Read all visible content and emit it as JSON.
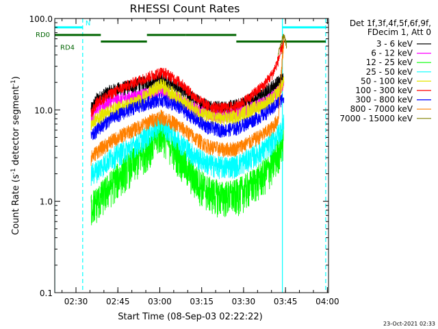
{
  "chart_data": {
    "type": "line",
    "title": "RHESSI Count Rates",
    "xlabel": "Start Time (08-Sep-03 02:22:22)",
    "ylabel_parts": [
      "Count Rate (s",
      "-1",
      " detector segment",
      "-1",
      ")"
    ],
    "x_unit": "minutes after 02:22:22 UT",
    "xlim": [
      0,
      98
    ],
    "ylim": [
      0.1,
      100
    ],
    "yscale": "log",
    "grid": false,
    "legend_position": "right",
    "x_ticks": [
      {
        "label": "02:30",
        "minute": 7.6
      },
      {
        "label": "02:45",
        "minute": 22.6
      },
      {
        "label": "03:00",
        "minute": 37.6
      },
      {
        "label": "03:15",
        "minute": 52.6
      },
      {
        "label": "03:30",
        "minute": 67.6
      },
      {
        "label": "03:45",
        "minute": 82.6
      },
      {
        "label": "04:00",
        "minute": 97.6
      }
    ],
    "y_ticks": [
      {
        "label": "0.1",
        "value": 0.1
      },
      {
        "label": "1.0",
        "value": 1.0
      },
      {
        "label": "10.0",
        "value": 10.0
      },
      {
        "label": "100.0",
        "value": 100.0
      }
    ],
    "legend_header": [
      "Det 1f,3f,4f,5f,6f,9f,",
      "FDecim 1, Att 0"
    ],
    "timestamp": "23-Oct-2021 02:33",
    "series": [
      {
        "name": "3 - 6 keV",
        "color": "#000000",
        "x": [
          13,
          15,
          20,
          25,
          30,
          35,
          38,
          40,
          45,
          50,
          55,
          60,
          65,
          70,
          75,
          78,
          80,
          82
        ],
        "y": [
          10,
          13,
          16,
          17.5,
          19,
          21,
          21.5,
          21,
          17,
          13,
          11,
          10.5,
          11,
          13,
          15,
          18,
          20,
          23
        ]
      },
      {
        "name": "6 - 12 keV",
        "color": "#ff00ff",
        "x": [
          13,
          15,
          20,
          25,
          30,
          35,
          38,
          40,
          45,
          50,
          55,
          60,
          65,
          70,
          75,
          78,
          80,
          82
        ],
        "y": [
          8,
          10.5,
          12.5,
          13.5,
          14.5,
          15.5,
          16,
          15.5,
          13,
          10.5,
          9,
          8.5,
          9,
          10.5,
          12,
          14,
          16,
          19
        ]
      },
      {
        "name": "12 - 25 keV",
        "color": "#00ff00",
        "x": [
          13,
          15,
          20,
          25,
          30,
          35,
          38,
          40,
          45,
          50,
          55,
          60,
          65,
          70,
          75,
          78,
          80,
          82
        ],
        "y": [
          0.9,
          1.0,
          1.5,
          2.2,
          3.0,
          4.5,
          5.8,
          5.0,
          3.0,
          1.8,
          1.3,
          1.15,
          1.2,
          1.5,
          2.0,
          2.6,
          3.5,
          5
        ]
      },
      {
        "name": "25 - 50 keV",
        "color": "#00ffff",
        "x": [
          13,
          15,
          20,
          25,
          30,
          35,
          38,
          40,
          45,
          50,
          55,
          60,
          65,
          70,
          75,
          78,
          80,
          82
        ],
        "y": [
          2.0,
          2.2,
          3.0,
          3.6,
          4.4,
          6.0,
          7.3,
          6.5,
          4.5,
          3.2,
          2.6,
          2.4,
          2.5,
          3.0,
          3.7,
          4.5,
          5.5,
          7
        ]
      },
      {
        "name": "50 - 100 keV",
        "color": "#e5e500",
        "x": [
          13,
          15,
          20,
          25,
          30,
          35,
          38,
          40,
          45,
          50,
          55,
          60,
          65,
          70,
          75,
          78,
          80,
          82
        ],
        "y": [
          7.0,
          8.0,
          10.0,
          11.0,
          12.5,
          16,
          19,
          17,
          13,
          10,
          8.5,
          8,
          8.5,
          10,
          11.5,
          13,
          16,
          20
        ]
      },
      {
        "name": "100 - 300 keV",
        "color": "#ff0000",
        "x": [
          13,
          15,
          20,
          25,
          30,
          35,
          38,
          40,
          45,
          50,
          55,
          60,
          65,
          70,
          75,
          78,
          80,
          82
        ],
        "y": [
          9,
          12,
          15,
          18,
          21,
          24,
          26,
          25,
          20,
          14,
          11,
          10.5,
          11,
          14,
          19,
          25,
          35,
          55
        ]
      },
      {
        "name": "300 - 800 keV",
        "color": "#0000ff",
        "x": [
          13,
          15,
          20,
          25,
          30,
          35,
          38,
          40,
          45,
          50,
          55,
          60,
          65,
          70,
          75,
          78,
          80,
          82
        ],
        "y": [
          5.0,
          6.0,
          8.0,
          9.5,
          11.0,
          12.5,
          13,
          12.5,
          10.5,
          8.0,
          6.5,
          6.0,
          6.3,
          7.5,
          9.0,
          10.5,
          12,
          14
        ]
      },
      {
        "name": "800 - 7000 keV",
        "color": "#ff8000",
        "x": [
          13,
          15,
          20,
          25,
          30,
          35,
          38,
          40,
          45,
          50,
          55,
          60,
          65,
          70,
          75,
          78,
          80,
          82
        ],
        "y": [
          3.0,
          3.5,
          4.5,
          5.5,
          6.5,
          7.8,
          8.5,
          8,
          6.5,
          5,
          4,
          3.7,
          3.8,
          4.5,
          5.5,
          6.5,
          8,
          60
        ]
      },
      {
        "name": "7000 - 15000 keV",
        "color": "#808000",
        "x": [
          80,
          81,
          82,
          82.5,
          83
        ],
        "y": [
          40,
          55,
          65,
          60,
          50
        ]
      }
    ],
    "annotations": [
      {
        "label": "N",
        "color": "#00ffff",
        "x": [
          0,
          10
        ],
        "level": 80
      },
      {
        "label": "",
        "color": "#00ffff",
        "x": [
          81.5,
          97
        ],
        "level": 80
      },
      {
        "label": "RD0",
        "color": "#006400",
        "x": [
          0,
          16.5
        ],
        "level": 66
      },
      {
        "label": "RD4",
        "color": "#006400",
        "x": [
          16.5,
          33
        ],
        "level": 56
      },
      {
        "label": "",
        "color": "#006400",
        "x": [
          33,
          47
        ],
        "level": 66
      },
      {
        "label": "",
        "color": "#006400",
        "x": [
          47,
          65
        ],
        "level": 66
      },
      {
        "label": "",
        "color": "#006400",
        "x": [
          65,
          97
        ],
        "level": 56
      }
    ],
    "vertical_markers": [
      {
        "x": 0,
        "color": "#00ffff",
        "style": "solid"
      },
      {
        "x": 10,
        "color": "#00ffff",
        "style": "dashed"
      },
      {
        "x": 81.5,
        "color": "#00ffff",
        "style": "solid"
      },
      {
        "x": 97,
        "color": "#00ffff",
        "style": "dashed"
      }
    ]
  }
}
